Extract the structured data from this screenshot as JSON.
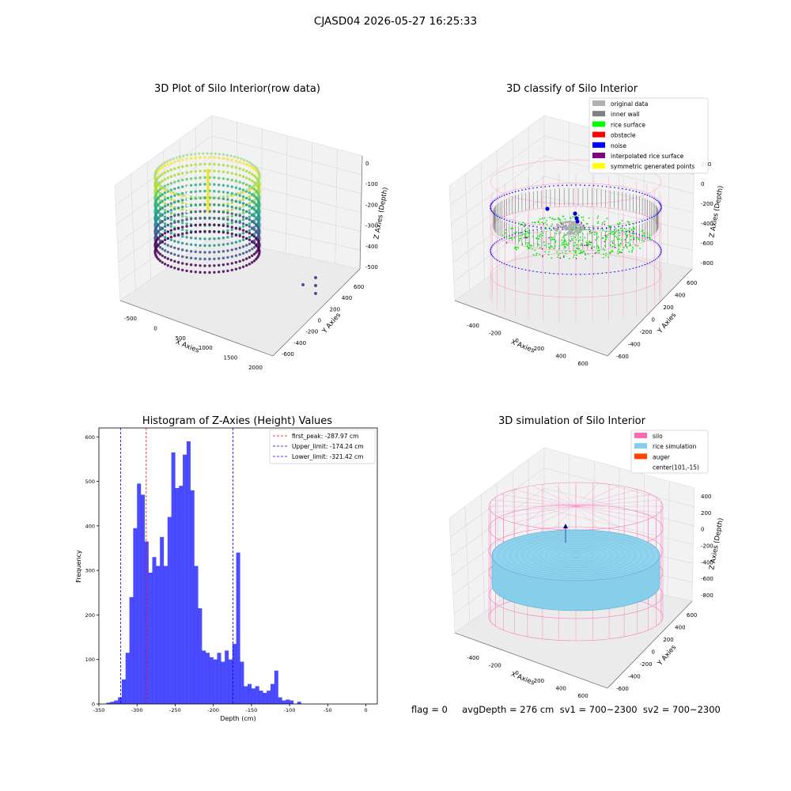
{
  "suptitle": "CJASD04 2026-05-27 16:25:33",
  "footer": {
    "text": "flag = 0     avgDepth = 276 cm  sv1 = 700~2300  sv2 = 700~2300"
  },
  "chart_data": [
    {
      "type": "scatter3d",
      "title": "3D Plot of Silo Interior(row data)",
      "xlabel": "X Axies",
      "ylabel": "Y Axies",
      "zlabel": "Z Axies (Depth)",
      "xticks": [
        -500,
        0,
        500,
        1000,
        1500,
        2000
      ],
      "yticks": [
        -600,
        -400,
        -200,
        0,
        200,
        400,
        600
      ],
      "zticks": [
        0,
        -100,
        -200,
        -300,
        -400,
        -500
      ],
      "colormap": "viridis",
      "outlier_points": [
        [
          1850,
          400,
          -500
        ],
        [
          1850,
          500,
          -500
        ],
        [
          1900,
          350,
          -500
        ],
        [
          1880,
          450,
          -500
        ]
      ]
    },
    {
      "type": "scatter3d",
      "title": "3D classify of Silo Interior",
      "xlabel": "X Axies",
      "ylabel": "Y Axies",
      "zlabel": "Z Axies (Depth)",
      "xticks": [
        -400,
        -200,
        0,
        200,
        400,
        600
      ],
      "yticks": [
        -600,
        -400,
        -200,
        0,
        200,
        400,
        600
      ],
      "zticks": [
        200,
        0,
        -200,
        -400,
        -600,
        -800
      ],
      "legend_position": "upper-right",
      "legend": [
        {
          "label": "original data",
          "color": "#b0b0b0"
        },
        {
          "label": "inner wall",
          "color": "#808080"
        },
        {
          "label": "rice surface",
          "color": "#00ff00"
        },
        {
          "label": "obstacle",
          "color": "#ff0000"
        },
        {
          "label": "noise",
          "color": "#0000ff"
        },
        {
          "label": "interpolated rice surface",
          "color": "#800080"
        },
        {
          "label": "symmetric generated points",
          "color": "#ffff00"
        }
      ]
    },
    {
      "type": "bar",
      "title": "Histogram of Z-Axies (Height) Values",
      "xlabel": "Depth (cm)",
      "ylabel": "Frequency",
      "xlim": [
        -350,
        15
      ],
      "ylim": [
        0,
        620
      ],
      "xticks": [
        -350,
        -300,
        -250,
        -200,
        -150,
        -100,
        -50,
        0
      ],
      "yticks": [
        0,
        100,
        200,
        300,
        400,
        500,
        600
      ],
      "bar_color": "#0000ff",
      "bin_width": 5,
      "bin_starts": [
        -340,
        -335,
        -330,
        -325,
        -320,
        -315,
        -310,
        -305,
        -300,
        -295,
        -290,
        -285,
        -280,
        -275,
        -270,
        -265,
        -260,
        -255,
        -250,
        -245,
        -240,
        -235,
        -230,
        -225,
        -220,
        -215,
        -210,
        -205,
        -200,
        -195,
        -190,
        -185,
        -180,
        -175,
        -170,
        -165,
        -160,
        -155,
        -150,
        -145,
        -140,
        -135,
        -130,
        -125,
        -120,
        -115,
        -110,
        -105,
        -100,
        -95,
        -90,
        -85,
        -80,
        -75,
        -70,
        -65,
        -60,
        -55,
        -50,
        -45,
        -40,
        -35,
        -30,
        -25,
        -20,
        -15,
        -10,
        -5,
        0
      ],
      "values": [
        3,
        5,
        8,
        15,
        55,
        115,
        240,
        395,
        495,
        470,
        365,
        295,
        330,
        310,
        375,
        310,
        420,
        565,
        485,
        490,
        560,
        590,
        480,
        310,
        215,
        120,
        115,
        105,
        100,
        115,
        95,
        120,
        100,
        135,
        340,
        95,
        40,
        45,
        35,
        40,
        30,
        25,
        30,
        45,
        75,
        15,
        8,
        10,
        8,
        0,
        5,
        0,
        0,
        0,
        0,
        0,
        0,
        0,
        0,
        0,
        0,
        0,
        0,
        0,
        0,
        0,
        0,
        0,
        0
      ],
      "vlines": [
        {
          "x": -287.97,
          "label": "first_peak: -287.97 cm",
          "color": "#ff0000"
        },
        {
          "x": -174.24,
          "label": "Upper_limit: -174.24 cm",
          "color": "#0000ff"
        },
        {
          "x": -321.42,
          "label": "Lower_limit: -321.42 cm",
          "color": "#0000ff"
        }
      ],
      "legend_position": "upper-right"
    },
    {
      "type": "surface3d",
      "title": "3D simulation of Silo Interior",
      "xlabel": "X Axies",
      "ylabel": "Y Axies",
      "zlabel": "Z Axies (Depth)",
      "xticks": [
        -400,
        -200,
        0,
        200,
        400,
        600
      ],
      "yticks": [
        -600,
        -400,
        -200,
        0,
        200,
        400,
        600
      ],
      "zticks": [
        400,
        200,
        0,
        -200,
        -400,
        -600,
        -800
      ],
      "legend_position": "upper-right",
      "legend": [
        {
          "label": "silo",
          "color": "#ff69b4"
        },
        {
          "label": "rice simulation",
          "color": "#87ceeb"
        },
        {
          "label": "auger",
          "color": "#ff4500"
        },
        {
          "label": "center(101,-15)",
          "color": ""
        }
      ]
    }
  ]
}
